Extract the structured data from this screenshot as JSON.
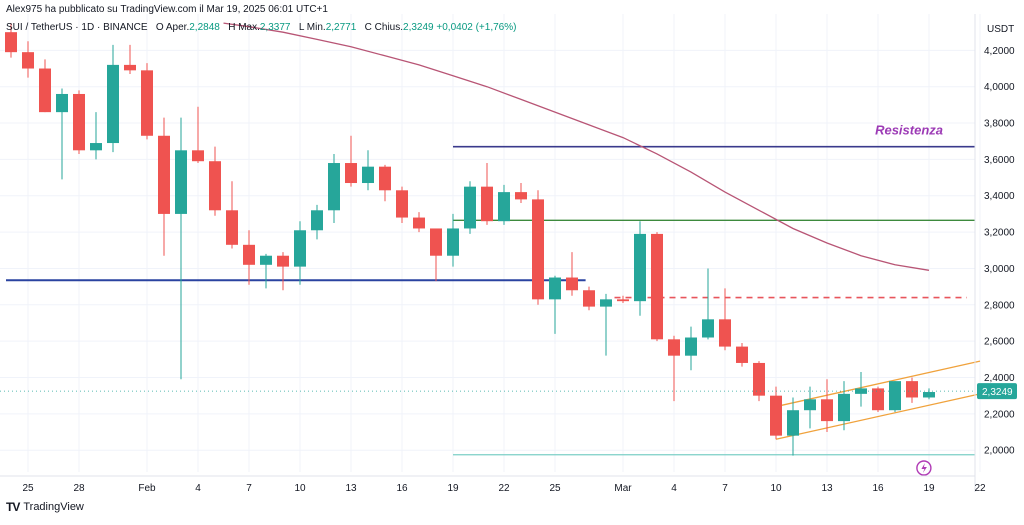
{
  "header": {
    "published_by": "Alex975 ha pubblicato su TradingView.com il Mar 19, 2025 06:01 UTC+1",
    "symbol": "SUI / TetherUS · 1D · BINANCE",
    "open_label": "O",
    "open_text": "Aper.",
    "open_value": "2,2848",
    "high_label": "H",
    "high_text": "Max.",
    "high_value": "2,3377",
    "low_label": "L",
    "low_text": "Min.",
    "low_value": "2,2771",
    "close_label": "C",
    "close_text": "Chius.",
    "close_value": "2,3249",
    "change_value": "+0,0402 (+1,76%)"
  },
  "footer": {
    "brand": "TradingView",
    "logo": "TV"
  },
  "chart_data": {
    "type": "candlestick",
    "currency": "USDT",
    "last_price_label": "2,3249",
    "ylim": [
      1.9,
      4.35
    ],
    "y_ticks": [
      {
        "value": 2.0,
        "label": "2,0000"
      },
      {
        "value": 2.2,
        "label": "2,2000"
      },
      {
        "value": 2.4,
        "label": "2,4000"
      },
      {
        "value": 2.6,
        "label": "2,6000"
      },
      {
        "value": 2.8,
        "label": "2,8000"
      },
      {
        "value": 3.0,
        "label": "3,0000"
      },
      {
        "value": 3.2,
        "label": "3,2000"
      },
      {
        "value": 3.4,
        "label": "3,4000"
      },
      {
        "value": 3.6,
        "label": "3,6000"
      },
      {
        "value": 3.8,
        "label": "3,8000"
      },
      {
        "value": 4.0,
        "label": "4,0000"
      },
      {
        "value": 4.2,
        "label": "4,2000"
      }
    ],
    "x_ticks": [
      {
        "i": 1,
        "label": "25"
      },
      {
        "i": 4,
        "label": "28"
      },
      {
        "i": 8,
        "label": "Feb"
      },
      {
        "i": 11,
        "label": "4"
      },
      {
        "i": 14,
        "label": "7"
      },
      {
        "i": 17,
        "label": "10"
      },
      {
        "i": 20,
        "label": "13"
      },
      {
        "i": 23,
        "label": "16"
      },
      {
        "i": 26,
        "label": "19"
      },
      {
        "i": 29,
        "label": "22"
      },
      {
        "i": 32,
        "label": "25"
      },
      {
        "i": 36,
        "label": "Mar"
      },
      {
        "i": 39,
        "label": "4"
      },
      {
        "i": 42,
        "label": "7"
      },
      {
        "i": 45,
        "label": "10"
      },
      {
        "i": 48,
        "label": "13"
      },
      {
        "i": 51,
        "label": "16"
      },
      {
        "i": 54,
        "label": "19"
      },
      {
        "i": 57,
        "label": "22"
      }
    ],
    "candles": [
      {
        "o": 4.3,
        "h": 4.35,
        "l": 4.16,
        "c": 4.19
      },
      {
        "o": 4.19,
        "h": 4.25,
        "l": 4.05,
        "c": 4.1
      },
      {
        "o": 4.1,
        "h": 4.15,
        "l": 3.86,
        "c": 3.86
      },
      {
        "o": 3.86,
        "h": 3.99,
        "l": 3.49,
        "c": 3.96
      },
      {
        "o": 3.96,
        "h": 3.98,
        "l": 3.63,
        "c": 3.65
      },
      {
        "o": 3.65,
        "h": 3.86,
        "l": 3.6,
        "c": 3.69
      },
      {
        "o": 3.69,
        "h": 4.23,
        "l": 3.64,
        "c": 4.12
      },
      {
        "o": 4.12,
        "h": 4.23,
        "l": 4.07,
        "c": 4.09
      },
      {
        "o": 4.09,
        "h": 4.13,
        "l": 3.71,
        "c": 3.73
      },
      {
        "o": 3.73,
        "h": 3.83,
        "l": 3.07,
        "c": 3.3
      },
      {
        "o": 3.3,
        "h": 3.83,
        "l": 2.39,
        "c": 3.65
      },
      {
        "o": 3.65,
        "h": 3.89,
        "l": 3.58,
        "c": 3.59
      },
      {
        "o": 3.59,
        "h": 3.67,
        "l": 3.29,
        "c": 3.32
      },
      {
        "o": 3.32,
        "h": 3.48,
        "l": 3.11,
        "c": 3.13
      },
      {
        "o": 3.13,
        "h": 3.21,
        "l": 2.91,
        "c": 3.02
      },
      {
        "o": 3.02,
        "h": 3.08,
        "l": 2.89,
        "c": 3.07
      },
      {
        "o": 3.07,
        "h": 3.09,
        "l": 2.88,
        "c": 3.01
      },
      {
        "o": 3.01,
        "h": 3.26,
        "l": 2.91,
        "c": 3.21
      },
      {
        "o": 3.21,
        "h": 3.35,
        "l": 3.16,
        "c": 3.32
      },
      {
        "o": 3.32,
        "h": 3.63,
        "l": 3.25,
        "c": 3.58
      },
      {
        "o": 3.58,
        "h": 3.73,
        "l": 3.45,
        "c": 3.47
      },
      {
        "o": 3.47,
        "h": 3.65,
        "l": 3.43,
        "c": 3.56
      },
      {
        "o": 3.56,
        "h": 3.57,
        "l": 3.37,
        "c": 3.43
      },
      {
        "o": 3.43,
        "h": 3.45,
        "l": 3.25,
        "c": 3.28
      },
      {
        "o": 3.28,
        "h": 3.31,
        "l": 3.2,
        "c": 3.22
      },
      {
        "o": 3.22,
        "h": 3.22,
        "l": 2.93,
        "c": 3.07
      },
      {
        "o": 3.07,
        "h": 3.3,
        "l": 3.01,
        "c": 3.22
      },
      {
        "o": 3.22,
        "h": 3.48,
        "l": 3.19,
        "c": 3.45
      },
      {
        "o": 3.45,
        "h": 3.58,
        "l": 3.24,
        "c": 3.26
      },
      {
        "o": 3.26,
        "h": 3.46,
        "l": 3.24,
        "c": 3.42
      },
      {
        "o": 3.42,
        "h": 3.47,
        "l": 3.36,
        "c": 3.38
      },
      {
        "o": 3.38,
        "h": 3.43,
        "l": 2.8,
        "c": 2.83
      },
      {
        "o": 2.83,
        "h": 2.96,
        "l": 2.64,
        "c": 2.95
      },
      {
        "o": 2.95,
        "h": 3.09,
        "l": 2.85,
        "c": 2.88
      },
      {
        "o": 2.88,
        "h": 2.9,
        "l": 2.77,
        "c": 2.79
      },
      {
        "o": 2.79,
        "h": 2.86,
        "l": 2.52,
        "c": 2.83
      },
      {
        "o": 2.83,
        "h": 2.85,
        "l": 2.81,
        "c": 2.82
      },
      {
        "o": 2.82,
        "h": 3.26,
        "l": 2.74,
        "c": 3.19
      },
      {
        "o": 3.19,
        "h": 3.2,
        "l": 2.6,
        "c": 2.61
      },
      {
        "o": 2.61,
        "h": 2.63,
        "l": 2.27,
        "c": 2.52
      },
      {
        "o": 2.52,
        "h": 2.68,
        "l": 2.44,
        "c": 2.62
      },
      {
        "o": 2.62,
        "h": 3.0,
        "l": 2.61,
        "c": 2.72
      },
      {
        "o": 2.72,
        "h": 2.89,
        "l": 2.55,
        "c": 2.57
      },
      {
        "o": 2.57,
        "h": 2.59,
        "l": 2.46,
        "c": 2.48
      },
      {
        "o": 2.48,
        "h": 2.49,
        "l": 2.27,
        "c": 2.3
      },
      {
        "o": 2.3,
        "h": 2.35,
        "l": 2.06,
        "c": 2.08
      },
      {
        "o": 2.08,
        "h": 2.29,
        "l": 1.97,
        "c": 2.22
      },
      {
        "o": 2.22,
        "h": 2.35,
        "l": 2.12,
        "c": 2.28
      },
      {
        "o": 2.28,
        "h": 2.39,
        "l": 2.1,
        "c": 2.16
      },
      {
        "o": 2.16,
        "h": 2.38,
        "l": 2.11,
        "c": 2.31
      },
      {
        "o": 2.31,
        "h": 2.43,
        "l": 2.24,
        "c": 2.34
      },
      {
        "o": 2.34,
        "h": 2.35,
        "l": 2.21,
        "c": 2.22
      },
      {
        "o": 2.22,
        "h": 2.38,
        "l": 2.21,
        "c": 2.38
      },
      {
        "o": 2.38,
        "h": 2.4,
        "l": 2.26,
        "c": 2.29
      },
      {
        "o": 2.29,
        "h": 2.34,
        "l": 2.28,
        "c": 2.32
      }
    ],
    "moving_average": {
      "start_i": 12.5,
      "end_i": 54.0,
      "points": [
        [
          12.5,
          4.35
        ],
        [
          14,
          4.33
        ],
        [
          16,
          4.3
        ],
        [
          18,
          4.26
        ],
        [
          20,
          4.22
        ],
        [
          22,
          4.17
        ],
        [
          24,
          4.12
        ],
        [
          26,
          4.06
        ],
        [
          28,
          4.0
        ],
        [
          30,
          3.93
        ],
        [
          32,
          3.86
        ],
        [
          34,
          3.79
        ],
        [
          36,
          3.72
        ],
        [
          38,
          3.63
        ],
        [
          40,
          3.53
        ],
        [
          42,
          3.42
        ],
        [
          44,
          3.32
        ],
        [
          46,
          3.22
        ],
        [
          48,
          3.14
        ],
        [
          50,
          3.07
        ],
        [
          52,
          3.02
        ],
        [
          54,
          2.99
        ]
      ],
      "color": "#b85575"
    },
    "annotations": {
      "resistance_label": "Resistenza",
      "resistance_level": 3.67,
      "resistance_start_i": 26.0,
      "resistance_color": "#3a3a8c",
      "support_level": 2.935,
      "support_end_i": 33.8,
      "support_color": "#2a43a0",
      "green_level": 3.265,
      "green_start_i": 26.0,
      "green_color": "#3d8a3d",
      "dashed_level": 2.84,
      "dashed_start_i": 35.5,
      "dashed_color": "#e8555c",
      "channel_upper": {
        "from": [
          45.0,
          2.24
        ],
        "to": [
          57.0,
          2.49
        ]
      },
      "channel_lower": {
        "from": [
          45.0,
          2.06
        ],
        "to": [
          57.0,
          2.31
        ]
      },
      "channel_color": "#f0a23c",
      "teal_level": 1.975,
      "teal_start_i": 26.0,
      "teal_color": "#7ccfc6"
    },
    "colors": {
      "up": "#26a69a",
      "down": "#ef5350",
      "grid": "#f0f3fa",
      "axis_text": "#131722"
    }
  }
}
